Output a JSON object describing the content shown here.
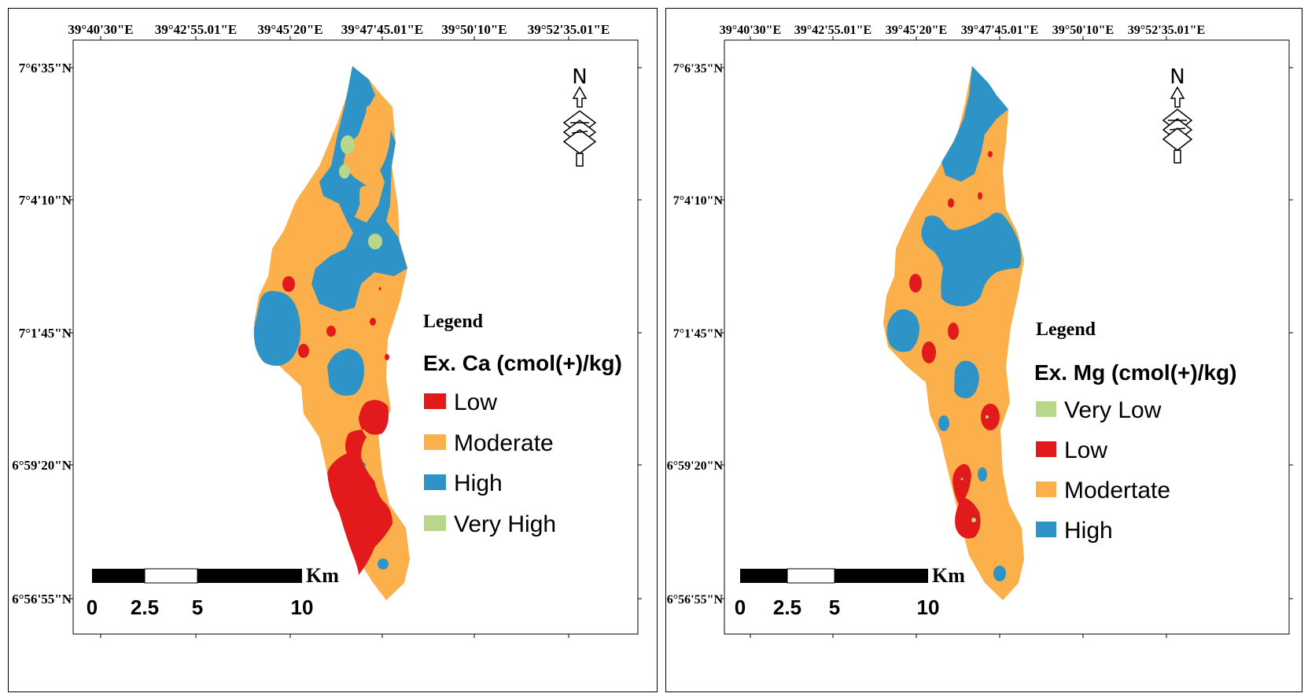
{
  "maps": [
    {
      "id": "ca",
      "lon_labels": [
        "39°40'30\"E",
        "39°42'55.01\"E",
        "39°45'20\"E",
        "39°47'45.01\"E",
        "39°50'10\"E",
        "39°52'35.01\"E"
      ],
      "lat_labels": [
        "7°6'35\"N",
        "7°4'10\"N",
        "7°1'45\"N",
        "6°59'20\"N",
        "6°56'55\"N"
      ],
      "north_label": "N",
      "legend": {
        "heading": "Legend",
        "title": "Ex. Ca (cmol(+)/kg)",
        "items": [
          {
            "label": "Low",
            "color": "#e31a1c"
          },
          {
            "label": "Moderate",
            "color": "#fbb04c"
          },
          {
            "label": "High",
            "color": "#2e94c8"
          },
          {
            "label": "Very High",
            "color": "#b9d78a"
          }
        ]
      },
      "scale_bar": {
        "unit": "Km",
        "ticks": [
          "0",
          "2.5",
          "5",
          "10"
        ]
      }
    },
    {
      "id": "mg",
      "lon_labels": [
        "39°40'30\"E",
        "39°42'55.01\"E",
        "39°45'20\"E",
        "39°47'45.01\"E",
        "39°50'10\"E",
        "39°52'35.01\"E"
      ],
      "lat_labels": [
        "7°6'35\"N",
        "7°4'10\"N",
        "7°1'45\"N",
        "6°59'20\"N",
        "6°56'55\"N"
      ],
      "north_label": "N",
      "legend": {
        "heading": "Legend",
        "title": "Ex. Mg (cmol(+)/kg)",
        "items": [
          {
            "label": "Very Low",
            "color": "#b9d78a"
          },
          {
            "label": "Low",
            "color": "#e31a1c"
          },
          {
            "label": "Modertate",
            "color": "#fbb04c"
          },
          {
            "label": "High",
            "color": "#2e94c8"
          }
        ]
      },
      "scale_bar": {
        "unit": "Km",
        "ticks": [
          "0",
          "2.5",
          "5",
          "10"
        ]
      }
    }
  ],
  "colors": {
    "low": "#e31a1c",
    "moderate": "#fbb04c",
    "high": "#2e94c8",
    "very_high": "#b9d78a"
  }
}
